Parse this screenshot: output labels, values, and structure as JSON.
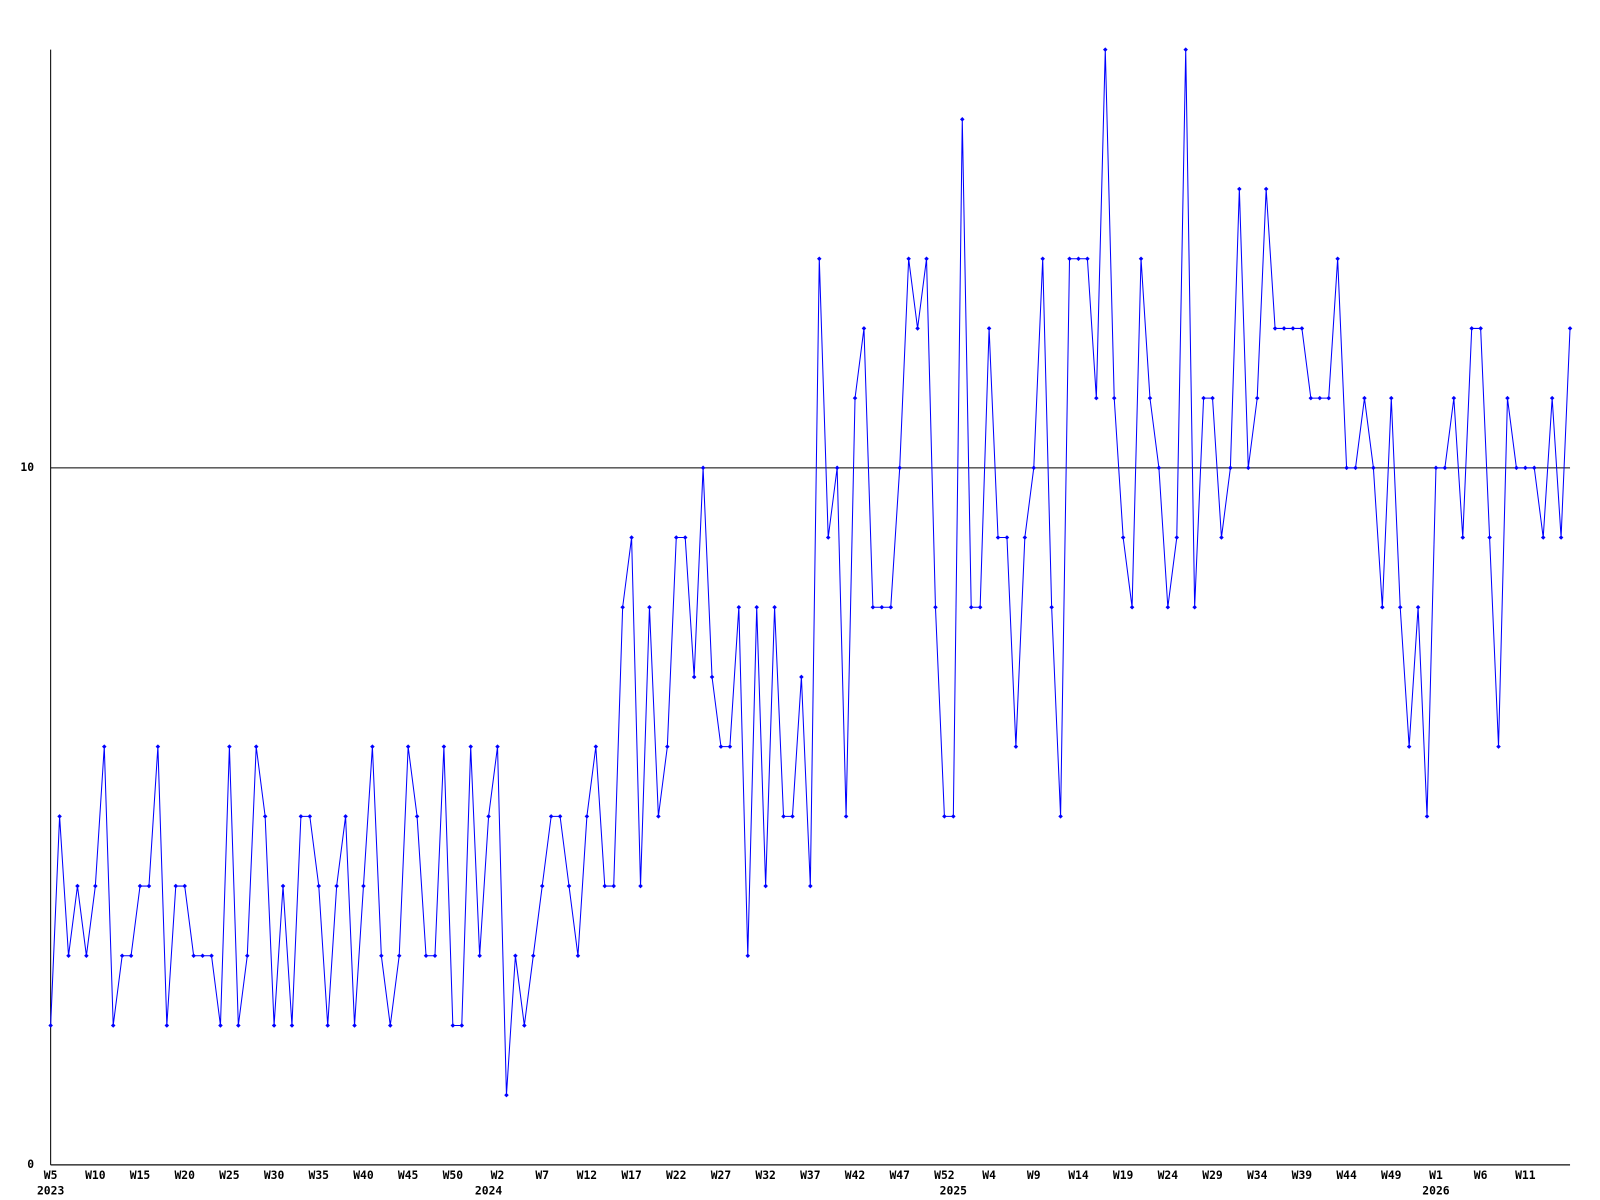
{
  "chart_data": {
    "type": "line",
    "color": "#0000ff",
    "categories": [
      "W5",
      null,
      null,
      null,
      null,
      "W10",
      null,
      null,
      null,
      null,
      "W15",
      null,
      null,
      null,
      null,
      "W20",
      null,
      null,
      null,
      null,
      "W25",
      null,
      null,
      null,
      null,
      "W30",
      null,
      null,
      null,
      null,
      "W35",
      null,
      null,
      null,
      null,
      "W40",
      null,
      null,
      null,
      null,
      "W45",
      null,
      null,
      null,
      null,
      "W50",
      null,
      null,
      null,
      null,
      "W2",
      null,
      null,
      null,
      null,
      "W7",
      null,
      null,
      null,
      null,
      "W12",
      null,
      null,
      null,
      null,
      "W17",
      null,
      null,
      null,
      null,
      "W22",
      null,
      null,
      null,
      null,
      "W27",
      null,
      null,
      null,
      null,
      "W32",
      null,
      null,
      null,
      null,
      "W37",
      null,
      null,
      null,
      null,
      "W42",
      null,
      null,
      null,
      null,
      "W47",
      null,
      null,
      null,
      null,
      "W52",
      null,
      null,
      null,
      null,
      "W4",
      null,
      null,
      null,
      null,
      "W9",
      null,
      null,
      null,
      null,
      "W14",
      null,
      null,
      null,
      null,
      "W19",
      null,
      null,
      null,
      null,
      "W24",
      null,
      null,
      null,
      null,
      "W29",
      null,
      null,
      null,
      null,
      "W34",
      null,
      null,
      null,
      null,
      "W39",
      null,
      null,
      null,
      null,
      "W44",
      null,
      null,
      null,
      null,
      "W49",
      null,
      null,
      null,
      null,
      "W1",
      null,
      null,
      null,
      null,
      "W6",
      null,
      null,
      null,
      null,
      "W11",
      null,
      null,
      null,
      null,
      null
    ],
    "category_years": [
      "2023",
      null,
      null,
      null,
      null,
      null,
      null,
      null,
      null,
      null,
      null,
      null,
      null,
      null,
      null,
      null,
      null,
      null,
      null,
      null,
      null,
      null,
      null,
      null,
      null,
      null,
      null,
      null,
      null,
      null,
      null,
      null,
      null,
      null,
      null,
      null,
      null,
      null,
      null,
      null,
      null,
      null,
      null,
      null,
      null,
      null,
      null,
      null,
      null,
      "2024",
      null,
      null,
      null,
      null,
      null,
      null,
      null,
      null,
      null,
      null,
      null,
      null,
      null,
      null,
      null,
      null,
      null,
      null,
      null,
      null,
      null,
      null,
      null,
      null,
      null,
      null,
      null,
      null,
      null,
      null,
      null,
      null,
      null,
      null,
      null,
      null,
      null,
      null,
      null,
      null,
      null,
      null,
      null,
      null,
      null,
      null,
      null,
      null,
      null,
      null,
      null,
      "2025",
      null,
      null,
      null,
      null,
      null,
      null,
      null,
      null,
      null,
      null,
      null,
      null,
      null,
      null,
      null,
      null,
      null,
      null,
      null,
      null,
      null,
      null,
      null,
      null,
      null,
      null,
      null,
      null,
      null,
      null,
      null,
      null,
      null,
      null,
      null,
      null,
      null,
      null,
      null,
      null,
      null,
      null,
      null,
      null,
      null,
      null,
      null,
      null,
      null,
      null,
      null,
      null,
      null,
      "2026",
      null,
      null,
      null,
      null,
      null,
      null,
      null,
      null,
      null,
      null,
      null,
      null,
      null,
      null,
      null
    ],
    "values": [
      2,
      5,
      3,
      4,
      3,
      4,
      6,
      2,
      3,
      3,
      4,
      4,
      6,
      2,
      4,
      4,
      3,
      3,
      3,
      2,
      6,
      2,
      3,
      6,
      5,
      2,
      4,
      2,
      5,
      5,
      4,
      2,
      4,
      5,
      2,
      4,
      6,
      3,
      2,
      3,
      6,
      5,
      3,
      3,
      6,
      2,
      2,
      6,
      3,
      5,
      6,
      1,
      3,
      2,
      3,
      4,
      5,
      5,
      4,
      3,
      5,
      6,
      4,
      4,
      8,
      9,
      4,
      8,
      5,
      6,
      9,
      9,
      7,
      10,
      7,
      6,
      6,
      8,
      3,
      8,
      4,
      8,
      5,
      5,
      7,
      4,
      13,
      9,
      10,
      5,
      11,
      12,
      8,
      8,
      8,
      10,
      13,
      12,
      13,
      8,
      5,
      5,
      15,
      8,
      8,
      12,
      9,
      9,
      6,
      9,
      10,
      13,
      8,
      5,
      13,
      13,
      13,
      11,
      16,
      11,
      9,
      8,
      13,
      11,
      10,
      8,
      9,
      16,
      8,
      11,
      11,
      9,
      10,
      14,
      10,
      11,
      14,
      12,
      12,
      12,
      12,
      11,
      11,
      11,
      13,
      10,
      10,
      11,
      10,
      8,
      11,
      8,
      6,
      8,
      5,
      10,
      10,
      11,
      9,
      12,
      12,
      9,
      6,
      11,
      10,
      10,
      10,
      9,
      11,
      9,
      12
    ],
    "ylim": [
      0,
      16
    ],
    "yticks": [
      0,
      10
    ],
    "grid": true
  }
}
